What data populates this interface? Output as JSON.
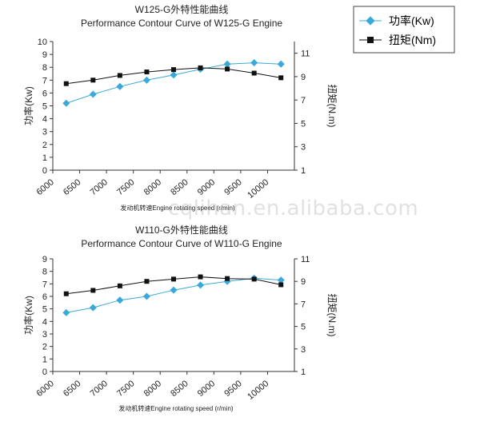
{
  "watermark": "cqlihan.en.alibaba.com",
  "legend": {
    "power": "功率(Kw)",
    "torque": "扭矩(Nm)"
  },
  "colors": {
    "power": "#3aa9d9",
    "torque": "#111111",
    "axis": "#333333"
  },
  "chart_data": [
    {
      "type": "line",
      "title": "W125-G外特性能曲线",
      "subtitle": "Performance Contour Curve of W125-G Engine",
      "xlabel": "发动机转速Engine rotating speed (r/min)",
      "ylabel_left": "功率(Kw)",
      "ylabel_right": "扭矩(N.m)",
      "x_ticks": [
        6000,
        6500,
        7000,
        7500,
        8000,
        8500,
        9000,
        9500,
        10000
      ],
      "xlim": [
        6000,
        10500
      ],
      "ylim_left": [
        0,
        10
      ],
      "yticks_left": [
        0,
        1,
        2,
        3,
        4,
        5,
        6,
        7,
        8,
        9,
        10
      ],
      "ylim_right": [
        1,
        12
      ],
      "yticks_right": [
        1,
        3,
        5,
        7,
        9,
        11
      ],
      "x": [
        6250,
        6750,
        7250,
        7750,
        8250,
        8750,
        9250,
        9750,
        10250
      ],
      "series": [
        {
          "name": "功率(Kw)",
          "axis": "left",
          "marker": "diamond",
          "values": [
            5.2,
            5.9,
            6.5,
            7.0,
            7.4,
            7.85,
            8.25,
            8.35,
            8.25
          ]
        },
        {
          "name": "扭矩(Nm)",
          "axis": "right",
          "marker": "square",
          "values": [
            8.4,
            8.7,
            9.1,
            9.4,
            9.6,
            9.75,
            9.65,
            9.3,
            8.9
          ]
        }
      ]
    },
    {
      "type": "line",
      "title": "W110-G外特性能曲线",
      "subtitle": "Performance Contour Curve of W110-G Engine",
      "xlabel": "发动机转速Engine rotating speed (r/min)",
      "ylabel_left": "功率(Kw)",
      "ylabel_right": "扭矩(N.m)",
      "x_ticks": [
        6000,
        6500,
        7000,
        7500,
        8000,
        8500,
        9000,
        9500,
        10000
      ],
      "xlim": [
        6000,
        10500
      ],
      "ylim_left": [
        0,
        9
      ],
      "yticks_left": [
        0,
        1,
        2,
        3,
        4,
        5,
        6,
        7,
        8,
        9
      ],
      "ylim_right": [
        1,
        11
      ],
      "yticks_right": [
        1,
        3,
        5,
        7,
        9,
        11
      ],
      "x": [
        6250,
        6750,
        7250,
        7750,
        8250,
        8750,
        9250,
        9750,
        10250
      ],
      "series": [
        {
          "name": "功率(Kw)",
          "axis": "left",
          "marker": "diamond",
          "values": [
            4.7,
            5.1,
            5.7,
            6.0,
            6.5,
            6.9,
            7.2,
            7.45,
            7.3
          ]
        },
        {
          "name": "扭矩(Nm)",
          "axis": "right",
          "marker": "square",
          "values": [
            7.9,
            8.2,
            8.6,
            9.0,
            9.2,
            9.4,
            9.25,
            9.2,
            8.7
          ]
        }
      ]
    }
  ]
}
